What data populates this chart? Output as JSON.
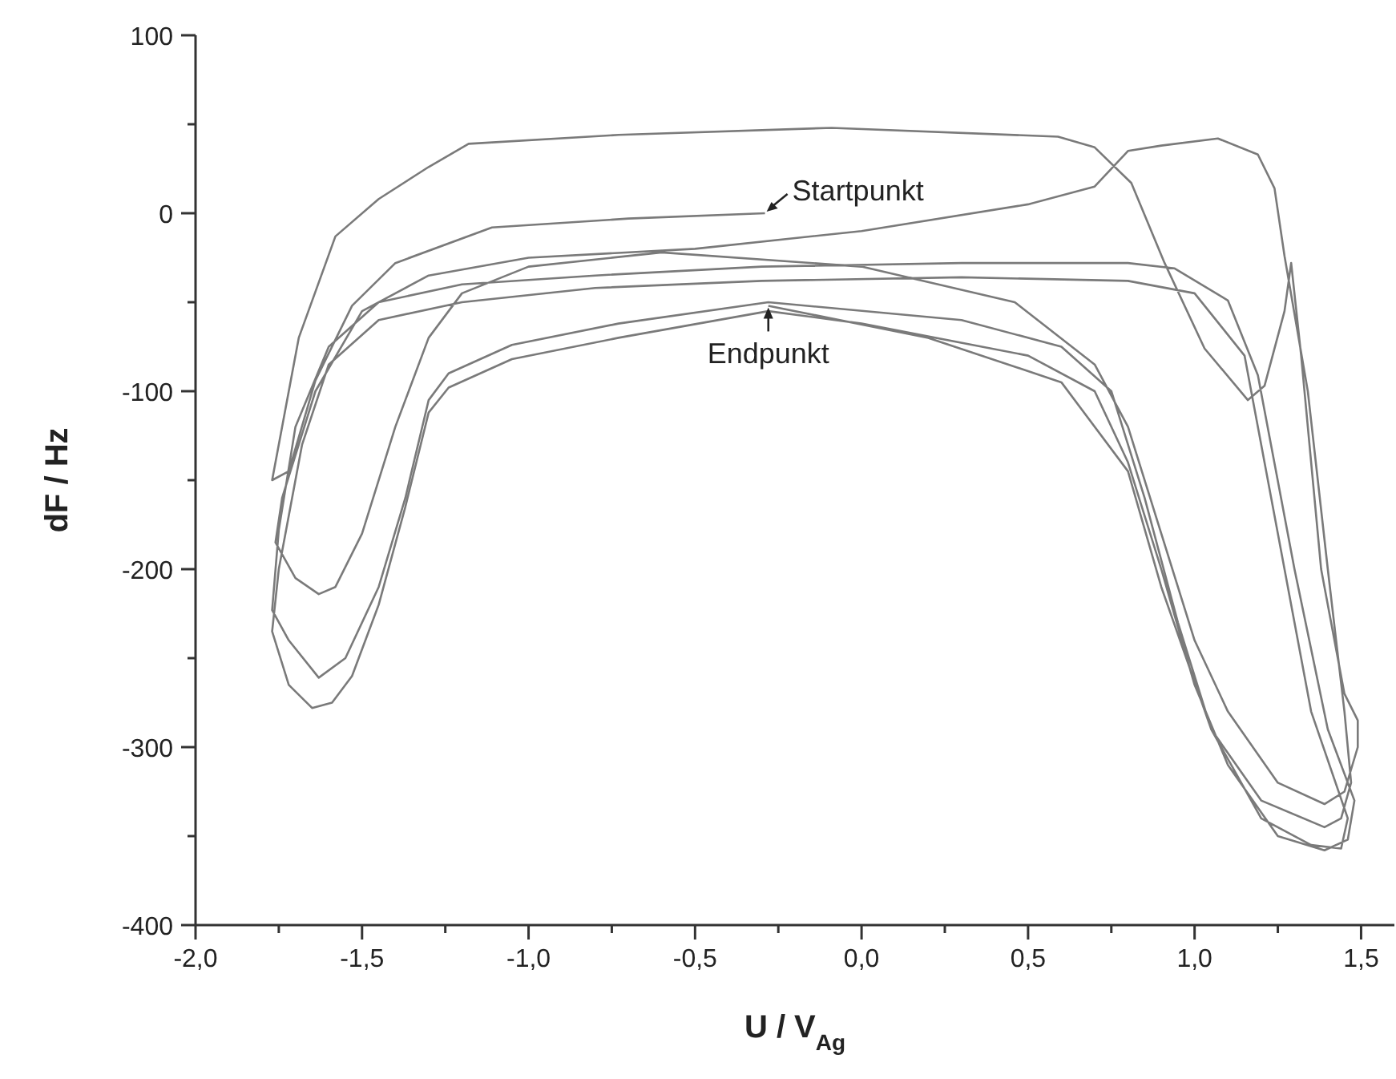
{
  "chart_data": {
    "type": "line",
    "xlabel": "U / V$_{Ag}$",
    "ylabel": "dF / Hz",
    "color": "#7a7a7a",
    "marker": "none",
    "x": [
      -0.29,
      -0.7,
      -1.11,
      -1.4,
      -1.53,
      -1.64,
      -1.72,
      -1.77,
      -1.69,
      -1.58,
      -1.45,
      -1.3,
      -1.18,
      -0.73,
      -0.09,
      0.59,
      0.7,
      0.81,
      0.91,
      1.03,
      1.16,
      1.21,
      1.27,
      1.29,
      1.32,
      1.38,
      1.45,
      1.49,
      1.49,
      1.45,
      1.39,
      1.25,
      1.1,
      1.0,
      0.9,
      0.8,
      0.7,
      0.46,
      0.0,
      -0.6,
      -1.0,
      -1.2,
      -1.3,
      -1.4,
      -1.5,
      -1.58,
      -1.63,
      -1.7,
      -1.76,
      -1.74,
      -1.64,
      -1.5,
      -1.3,
      -1.0,
      -0.5,
      0.0,
      0.5,
      0.7,
      0.8,
      0.9,
      1.07,
      1.19,
      1.24,
      1.27,
      1.34,
      1.4,
      1.45,
      1.47,
      1.44,
      1.39,
      1.2,
      1.05,
      0.95,
      0.85,
      0.75,
      0.6,
      0.3,
      -0.28,
      -0.73,
      -1.05,
      -1.24,
      -1.3,
      -1.37,
      -1.45,
      -1.55,
      -1.63,
      -1.72,
      -1.77,
      -1.75,
      -1.7,
      -1.6,
      -1.45,
      -1.2,
      -0.8,
      -0.3,
      0.3,
      0.8,
      0.94,
      1.1,
      1.19,
      1.3,
      1.4,
      1.48,
      1.46,
      1.39,
      1.25,
      1.1,
      1.0,
      0.9,
      0.8,
      0.7,
      0.5,
      0.0,
      -0.28,
      -0.73,
      -1.05,
      -1.24,
      -1.3,
      -1.37,
      -1.45,
      -1.53,
      -1.59,
      -1.65,
      -1.72,
      -1.77,
      -1.75,
      -1.68,
      -1.6,
      -1.45,
      -1.2,
      -0.8,
      -0.3,
      0.3,
      0.8,
      1.0,
      1.15,
      1.25,
      1.35,
      1.46,
      1.44,
      1.35,
      1.2,
      1.05,
      0.9,
      0.8,
      0.6,
      0.2,
      -0.28
    ],
    "values": [
      0,
      -3,
      -8,
      -28,
      -52,
      -94,
      -145,
      -150,
      -70,
      -13,
      8,
      26,
      39,
      44,
      48,
      43,
      37,
      17,
      -28,
      -76,
      -105,
      -97,
      -55,
      -28,
      -80,
      -200,
      -270,
      -285,
      -300,
      -325,
      -332,
      -320,
      -280,
      -240,
      -180,
      -120,
      -85,
      -50,
      -30,
      -22,
      -30,
      -45,
      -70,
      -120,
      -180,
      -210,
      -214,
      -205,
      -185,
      -160,
      -100,
      -55,
      -35,
      -25,
      -20,
      -10,
      5,
      15,
      35,
      38,
      42,
      33,
      14,
      -24,
      -100,
      -200,
      -280,
      -320,
      -340,
      -345,
      -330,
      -290,
      -230,
      -160,
      -100,
      -75,
      -60,
      -50,
      -62,
      -74,
      -90,
      -105,
      -160,
      -210,
      -250,
      -261,
      -240,
      -223,
      -178,
      -120,
      -75,
      -50,
      -40,
      -35,
      -30,
      -28,
      -28,
      -31,
      -49,
      -91,
      -200,
      -290,
      -330,
      -352,
      -358,
      -350,
      -310,
      -265,
      -200,
      -140,
      -100,
      -80,
      -62,
      -55,
      -70,
      -82,
      -98,
      -112,
      -165,
      -220,
      -260,
      -275,
      -278,
      -265,
      -235,
      -200,
      -130,
      -85,
      -60,
      -50,
      -42,
      -38,
      -36,
      -38,
      -45,
      -80,
      -180,
      -280,
      -340,
      -357,
      -355,
      -340,
      -290,
      -210,
      -145,
      -95,
      -70,
      -52
    ],
    "xlim": [
      -2,
      1.6
    ],
    "xticks": [
      {
        "value": -2,
        "label": "-2,0"
      },
      {
        "value": -1.75,
        "label": null
      },
      {
        "value": -1.5,
        "label": "-1,5"
      },
      {
        "value": -1.25,
        "label": null
      },
      {
        "value": -1,
        "label": "-1,0"
      },
      {
        "value": -0.75,
        "label": null
      },
      {
        "value": -0.5,
        "label": "-0,5"
      },
      {
        "value": -0.25,
        "label": null
      },
      {
        "value": 0,
        "label": "0,0"
      },
      {
        "value": 0.25,
        "label": null
      },
      {
        "value": 0.5,
        "label": "0,5"
      },
      {
        "value": 0.75,
        "label": null
      },
      {
        "value": 1,
        "label": "1,0"
      },
      {
        "value": 1.25,
        "label": null
      },
      {
        "value": 1.5,
        "label": "1,5"
      }
    ],
    "ylim": [
      -400,
      100
    ],
    "yticks": [
      -400,
      {
        "value": -350,
        "label": null
      },
      -300,
      {
        "value": -250,
        "label": null
      },
      -200,
      {
        "value": -150,
        "label": null
      },
      -100,
      {
        "value": -50,
        "label": null
      },
      0,
      {
        "value": 50,
        "label": null
      },
      100
    ],
    "annotations": [
      {
        "text": "Startpunkt",
        "x": -0.29,
        "y": 0
      },
      {
        "text": "Endpunkt",
        "x": -0.28,
        "y": -52
      }
    ]
  }
}
